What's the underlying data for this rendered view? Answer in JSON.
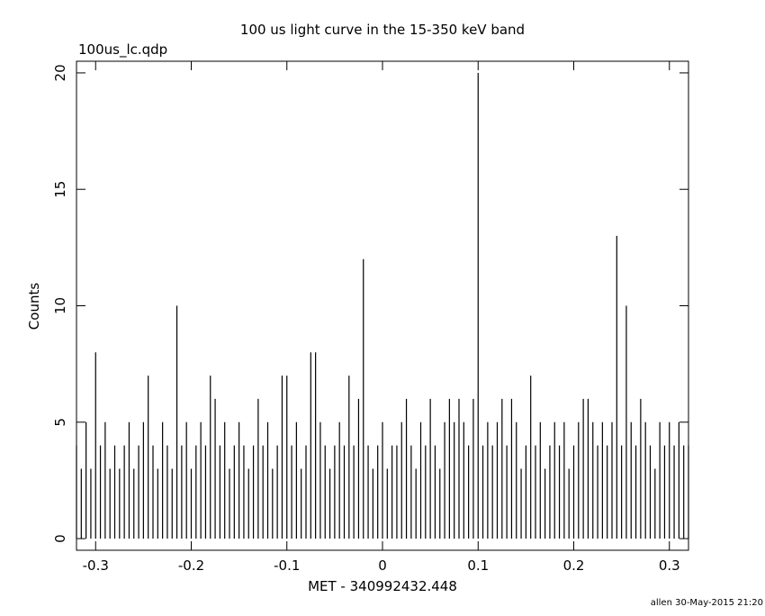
{
  "chart_data": {
    "type": "spikes",
    "title": "100 us light curve in the 15-350 keV band",
    "subtitle": "100us_lc.qdp",
    "x_label": "MET - 340992432.448",
    "y_label": "Counts",
    "footer": "allen 30-May-2015 21:20",
    "color": "#000000",
    "xlim": [
      -0.32,
      0.32
    ],
    "xticks": [
      -0.3,
      -0.2,
      -0.1,
      0,
      0.1,
      0.2,
      0.3
    ],
    "ylim": [
      -0.5,
      20.5
    ],
    "yticks": [
      0,
      5,
      10,
      15,
      20
    ],
    "x": [
      -0.32,
      -0.315,
      -0.31,
      -0.305,
      -0.3,
      -0.295,
      -0.29,
      -0.285,
      -0.28,
      -0.275,
      -0.27,
      -0.265,
      -0.26,
      -0.255,
      -0.25,
      -0.245,
      -0.24,
      -0.235,
      -0.23,
      -0.225,
      -0.22,
      -0.215,
      -0.21,
      -0.205,
      -0.2,
      -0.195,
      -0.19,
      -0.185,
      -0.18,
      -0.175,
      -0.17,
      -0.165,
      -0.16,
      -0.155,
      -0.15,
      -0.145,
      -0.14,
      -0.135,
      -0.13,
      -0.125,
      -0.12,
      -0.115,
      -0.11,
      -0.105,
      -0.1,
      -0.095,
      -0.09,
      -0.085,
      -0.08,
      -0.075,
      -0.07,
      -0.065,
      -0.06,
      -0.055,
      -0.05,
      -0.045,
      -0.04,
      -0.035,
      -0.03,
      -0.025,
      -0.02,
      -0.015,
      -0.01,
      -0.005,
      0,
      0.005,
      0.01,
      0.015,
      0.02,
      0.025,
      0.03,
      0.035,
      0.04,
      0.045,
      0.05,
      0.055,
      0.06,
      0.065,
      0.07,
      0.075,
      0.08,
      0.085,
      0.09,
      0.095,
      0.1,
      0.105,
      0.11,
      0.115,
      0.12,
      0.125,
      0.13,
      0.135,
      0.14,
      0.145,
      0.15,
      0.155,
      0.16,
      0.165,
      0.17,
      0.175,
      0.18,
      0.185,
      0.19,
      0.195,
      0.2,
      0.205,
      0.21,
      0.215,
      0.22,
      0.225,
      0.23,
      0.235,
      0.24,
      0.245,
      0.25,
      0.255,
      0.26,
      0.265,
      0.27,
      0.275,
      0.28,
      0.285,
      0.29,
      0.295,
      0.3,
      0.305,
      0.31,
      0.315,
      0.32
    ],
    "values": [
      4,
      3,
      5,
      3,
      8,
      4,
      5,
      3,
      4,
      3,
      4,
      5,
      3,
      4,
      5,
      7,
      4,
      3,
      5,
      4,
      3,
      10,
      4,
      5,
      3,
      4,
      5,
      4,
      7,
      6,
      4,
      5,
      3,
      4,
      5,
      4,
      3,
      4,
      6,
      4,
      5,
      3,
      4,
      7,
      7,
      4,
      5,
      3,
      4,
      8,
      8,
      5,
      4,
      3,
      4,
      5,
      4,
      7,
      4,
      6,
      12,
      4,
      3,
      4,
      5,
      3,
      4,
      4,
      5,
      6,
      4,
      3,
      5,
      4,
      6,
      4,
      3,
      5,
      6,
      5,
      6,
      5,
      4,
      6,
      20,
      4,
      5,
      4,
      5,
      6,
      4,
      6,
      5,
      3,
      4,
      7,
      4,
      5,
      3,
      4,
      5,
      4,
      5,
      3,
      4,
      5,
      6,
      6,
      5,
      4,
      5,
      4,
      5,
      13,
      4,
      10,
      5,
      4,
      6,
      5,
      4,
      3,
      5,
      4,
      5,
      4,
      5,
      4,
      4
    ]
  }
}
